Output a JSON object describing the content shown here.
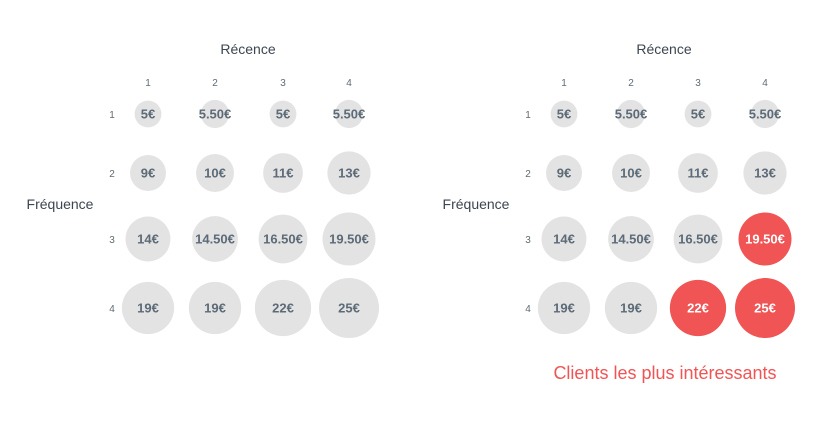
{
  "colors": {
    "bubble": "#e3e3e3",
    "bubble_text": "#5d6b78",
    "highlight": "#f05454",
    "highlight_text": "#ffffff",
    "axis_text": "#3d4650",
    "tick_text": "#5f6b75",
    "caption": "#f05454"
  },
  "chart_data": [
    {
      "type": "scatter",
      "title": "",
      "xlabel": "Récence",
      "ylabel": "Fréquence",
      "x_ticks": [
        "1",
        "2",
        "3",
        "4"
      ],
      "y_ticks": [
        "1",
        "2",
        "3",
        "4"
      ],
      "grid": false,
      "points": [
        {
          "x": 1,
          "y": 1,
          "value": 5,
          "label": "5€"
        },
        {
          "x": 2,
          "y": 1,
          "value": 5.5,
          "label": "5.50€"
        },
        {
          "x": 3,
          "y": 1,
          "value": 5,
          "label": "5€"
        },
        {
          "x": 4,
          "y": 1,
          "value": 5.5,
          "label": "5.50€"
        },
        {
          "x": 1,
          "y": 2,
          "value": 9,
          "label": "9€"
        },
        {
          "x": 2,
          "y": 2,
          "value": 10,
          "label": "10€"
        },
        {
          "x": 3,
          "y": 2,
          "value": 11,
          "label": "11€"
        },
        {
          "x": 4,
          "y": 2,
          "value": 13,
          "label": "13€"
        },
        {
          "x": 1,
          "y": 3,
          "value": 14,
          "label": "14€"
        },
        {
          "x": 2,
          "y": 3,
          "value": 14.5,
          "label": "14.50€"
        },
        {
          "x": 3,
          "y": 3,
          "value": 16.5,
          "label": "16.50€"
        },
        {
          "x": 4,
          "y": 3,
          "value": 19.5,
          "label": "19.50€"
        },
        {
          "x": 1,
          "y": 4,
          "value": 19,
          "label": "19€"
        },
        {
          "x": 2,
          "y": 4,
          "value": 19,
          "label": "19€"
        },
        {
          "x": 3,
          "y": 4,
          "value": 22,
          "label": "22€"
        },
        {
          "x": 4,
          "y": 4,
          "value": 25,
          "label": "25€"
        }
      ]
    },
    {
      "type": "scatter",
      "title": "",
      "xlabel": "Récence",
      "ylabel": "Fréquence",
      "x_ticks": [
        "1",
        "2",
        "3",
        "4"
      ],
      "y_ticks": [
        "1",
        "2",
        "3",
        "4"
      ],
      "grid": false,
      "highlight_label": "Clients les plus intéressants",
      "points": [
        {
          "x": 1,
          "y": 1,
          "value": 5,
          "label": "5€",
          "highlighted": false
        },
        {
          "x": 2,
          "y": 1,
          "value": 5.5,
          "label": "5.50€",
          "highlighted": false
        },
        {
          "x": 3,
          "y": 1,
          "value": 5,
          "label": "5€",
          "highlighted": false
        },
        {
          "x": 4,
          "y": 1,
          "value": 5.5,
          "label": "5.50€",
          "highlighted": false
        },
        {
          "x": 1,
          "y": 2,
          "value": 9,
          "label": "9€",
          "highlighted": false
        },
        {
          "x": 2,
          "y": 2,
          "value": 10,
          "label": "10€",
          "highlighted": false
        },
        {
          "x": 3,
          "y": 2,
          "value": 11,
          "label": "11€",
          "highlighted": false
        },
        {
          "x": 4,
          "y": 2,
          "value": 13,
          "label": "13€",
          "highlighted": false
        },
        {
          "x": 1,
          "y": 3,
          "value": 14,
          "label": "14€",
          "highlighted": false
        },
        {
          "x": 2,
          "y": 3,
          "value": 14.5,
          "label": "14.50€",
          "highlighted": false
        },
        {
          "x": 3,
          "y": 3,
          "value": 16.5,
          "label": "16.50€",
          "highlighted": false
        },
        {
          "x": 4,
          "y": 3,
          "value": 19.5,
          "label": "19.50€",
          "highlighted": true
        },
        {
          "x": 1,
          "y": 4,
          "value": 19,
          "label": "19€",
          "highlighted": false
        },
        {
          "x": 2,
          "y": 4,
          "value": 19,
          "label": "19€",
          "highlighted": false
        },
        {
          "x": 3,
          "y": 4,
          "value": 22,
          "label": "22€",
          "highlighted": true
        },
        {
          "x": 4,
          "y": 4,
          "value": 25,
          "label": "25€",
          "highlighted": true
        }
      ]
    }
  ]
}
